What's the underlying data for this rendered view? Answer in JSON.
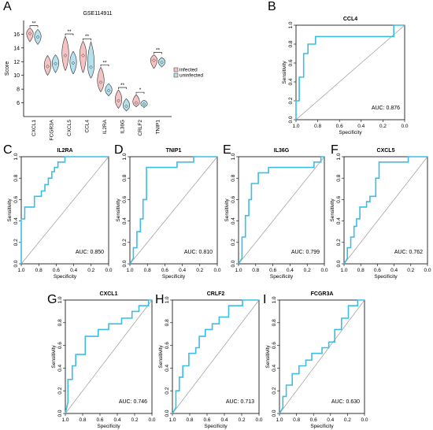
{
  "panel_letters": [
    "A",
    "B",
    "C",
    "D",
    "E",
    "F",
    "G",
    "H",
    "I"
  ],
  "chart_data": [
    {
      "panel": "A",
      "type": "violin",
      "title": "GSE114911",
      "ylabel": "Score",
      "ylim": [
        4,
        18
      ],
      "yticks": [
        6,
        8,
        10,
        12,
        14,
        16
      ],
      "categories": [
        "CXCL1",
        "FCGR3A",
        "CXCL5",
        "CCL4",
        "IL2RA",
        "IL36G",
        "CRLF2",
        "TNIP1"
      ],
      "significance": [
        "**",
        "",
        "**",
        "**",
        "**",
        "**",
        "*",
        "**"
      ],
      "legend": [
        "infected",
        "uninfected"
      ],
      "legend_position": "right",
      "colors": {
        "infected": "#f4c4c4",
        "uninfected": "#b5e0ec"
      },
      "series": [
        {
          "name": "infected",
          "median": [
            16.1,
            11.3,
            12.9,
            12.9,
            9.0,
            6.3,
            6.0,
            12.2
          ],
          "min": [
            14.9,
            10.0,
            10.7,
            10.4,
            7.6,
            5.2,
            5.4,
            11.0
          ],
          "max": [
            16.9,
            12.9,
            15.7,
            15.0,
            11.2,
            7.9,
            7.2,
            13.0
          ]
        },
        {
          "name": "uninfected",
          "median": [
            15.6,
            11.7,
            11.8,
            11.2,
            7.8,
            5.5,
            5.8,
            11.9
          ],
          "min": [
            14.5,
            10.4,
            10.2,
            9.6,
            7.0,
            4.8,
            5.3,
            11.2
          ],
          "max": [
            16.7,
            13.0,
            13.5,
            14.9,
            8.8,
            6.6,
            6.4,
            12.6
          ]
        }
      ]
    },
    {
      "panel": "B",
      "type": "roc",
      "title": "CCL4",
      "auc_label": "AUC: 0.876",
      "xlabel": "Specificity",
      "ylabel": "Sensitivity",
      "xticks": [
        "1.0",
        "0.8",
        "0.6",
        "0.4",
        "0.2",
        "0.0"
      ],
      "yticks": [
        "0.0",
        "0.2",
        "0.4",
        "0.6",
        "0.8",
        "1.0"
      ],
      "specificity": [
        1.0,
        1.0,
        0.97,
        0.97,
        0.93,
        0.93,
        0.89,
        0.89,
        0.82,
        0.82,
        0.1,
        0.1,
        0.0
      ],
      "sensitivity": [
        0.0,
        0.2,
        0.2,
        0.45,
        0.45,
        0.7,
        0.7,
        0.8,
        0.8,
        0.88,
        0.88,
        1.0,
        1.0
      ]
    },
    {
      "panel": "C",
      "type": "roc",
      "title": "IL2RA",
      "auc_label": "AUC: 0.850",
      "xlabel": "Specificity",
      "ylabel": "Sensitivity",
      "xticks": [
        "1.0",
        "0.8",
        "0.6",
        "0.4",
        "0.2",
        "0.0"
      ],
      "yticks": [
        "0.0",
        "0.2",
        "0.4",
        "0.6",
        "0.8",
        "1.0"
      ],
      "specificity": [
        1.0,
        1.0,
        0.96,
        0.96,
        0.85,
        0.85,
        0.77,
        0.77,
        0.73,
        0.73,
        0.69,
        0.69,
        0.65,
        0.65,
        0.62,
        0.62,
        0.58,
        0.58,
        0.5,
        0.5,
        0.0
      ],
      "sensitivity": [
        0.0,
        0.42,
        0.42,
        0.53,
        0.53,
        0.63,
        0.63,
        0.68,
        0.68,
        0.74,
        0.74,
        0.8,
        0.8,
        0.86,
        0.86,
        0.9,
        0.9,
        0.95,
        0.95,
        1.0,
        1.0
      ]
    },
    {
      "panel": "D",
      "type": "roc",
      "title": "TNIP1",
      "auc_label": "AUC: 0.810",
      "xlabel": "Specificity",
      "ylabel": "Sensitivity",
      "xticks": [
        "1.0",
        "0.8",
        "0.6",
        "0.4",
        "0.2",
        "0.0"
      ],
      "yticks": [
        "0.0",
        "0.2",
        "0.4",
        "0.6",
        "0.8",
        "1.0"
      ],
      "specificity": [
        1.0,
        0.96,
        0.96,
        0.92,
        0.92,
        0.88,
        0.88,
        0.85,
        0.85,
        0.81,
        0.81,
        0.46,
        0.46,
        0.27,
        0.27,
        0.0
      ],
      "sensitivity": [
        0.0,
        0.05,
        0.15,
        0.15,
        0.3,
        0.3,
        0.42,
        0.42,
        0.6,
        0.6,
        0.9,
        0.9,
        0.95,
        0.95,
        1.0,
        1.0
      ]
    },
    {
      "panel": "E",
      "type": "roc",
      "title": "IL36G",
      "auc_label": "AUC: 0.799",
      "xlabel": "Specificity",
      "ylabel": "Sensitivity",
      "xticks": [
        "1.0",
        "0.8",
        "0.6",
        "0.4",
        "0.2",
        "0.0"
      ],
      "yticks": [
        "0.0",
        "0.2",
        "0.4",
        "0.6",
        "0.8",
        "1.0"
      ],
      "specificity": [
        1.0,
        0.96,
        0.96,
        0.92,
        0.92,
        0.88,
        0.88,
        0.85,
        0.85,
        0.77,
        0.77,
        0.65,
        0.65,
        0.12,
        0.12,
        0.04,
        0.04,
        0.0
      ],
      "sensitivity": [
        0.0,
        0.05,
        0.25,
        0.25,
        0.45,
        0.45,
        0.6,
        0.6,
        0.75,
        0.75,
        0.85,
        0.85,
        0.9,
        0.9,
        0.95,
        0.95,
        1.0,
        1.0
      ]
    },
    {
      "panel": "F",
      "type": "roc",
      "title": "CXCL5",
      "auc_label": "AUC: 0.762",
      "xlabel": "Specificity",
      "ylabel": "Sensitivity",
      "xticks": [
        "1.0",
        "0.8",
        "0.6",
        "0.4",
        "0.2",
        "0.0"
      ],
      "yticks": [
        "0.0",
        "0.2",
        "0.4",
        "0.6",
        "0.8",
        "1.0"
      ],
      "specificity": [
        1.0,
        0.96,
        0.96,
        0.92,
        0.92,
        0.88,
        0.88,
        0.85,
        0.85,
        0.81,
        0.81,
        0.73,
        0.73,
        0.69,
        0.69,
        0.62,
        0.62,
        0.58,
        0.58,
        0.23,
        0.23,
        0.0
      ],
      "sensitivity": [
        0.0,
        0.05,
        0.15,
        0.15,
        0.25,
        0.25,
        0.35,
        0.35,
        0.42,
        0.42,
        0.53,
        0.53,
        0.58,
        0.58,
        0.63,
        0.63,
        0.8,
        0.8,
        0.95,
        0.95,
        1.0,
        1.0
      ]
    },
    {
      "panel": "G",
      "type": "roc",
      "title": "CXCL1",
      "auc_label": "AUC: 0.746",
      "xlabel": "Specificity",
      "ylabel": "Sensitivity",
      "xticks": [
        "1.0",
        "0.8",
        "0.6",
        "0.4",
        "0.2",
        "0.0"
      ],
      "yticks": [
        "0.0",
        "0.2",
        "0.4",
        "0.6",
        "0.8",
        "1.0"
      ],
      "specificity": [
        1.0,
        0.97,
        0.97,
        0.92,
        0.92,
        0.88,
        0.88,
        0.77,
        0.77,
        0.62,
        0.62,
        0.5,
        0.5,
        0.35,
        0.35,
        0.23,
        0.23,
        0.15,
        0.15,
        0.04,
        0.04,
        0.0
      ],
      "sensitivity": [
        0.0,
        0.1,
        0.3,
        0.3,
        0.42,
        0.42,
        0.52,
        0.52,
        0.68,
        0.68,
        0.74,
        0.74,
        0.79,
        0.79,
        0.84,
        0.84,
        0.9,
        0.9,
        0.95,
        0.95,
        1.0,
        1.0
      ]
    },
    {
      "panel": "H",
      "type": "roc",
      "title": "CRLF2",
      "auc_label": "AUC: 0.713",
      "xlabel": "Specificity",
      "ylabel": "Sensitivity",
      "xticks": [
        "1.0",
        "0.8",
        "0.6",
        "0.4",
        "0.2",
        "0.0"
      ],
      "yticks": [
        "0.0",
        "0.2",
        "0.4",
        "0.6",
        "0.8",
        "1.0"
      ],
      "specificity": [
        1.0,
        0.96,
        0.96,
        0.92,
        0.92,
        0.88,
        0.88,
        0.81,
        0.81,
        0.73,
        0.73,
        0.69,
        0.69,
        0.62,
        0.62,
        0.54,
        0.54,
        0.46,
        0.46,
        0.35,
        0.35,
        0.19,
        0.19,
        0.0
      ],
      "sensitivity": [
        0.0,
        0.05,
        0.2,
        0.2,
        0.32,
        0.32,
        0.42,
        0.42,
        0.53,
        0.53,
        0.58,
        0.58,
        0.68,
        0.68,
        0.74,
        0.74,
        0.79,
        0.79,
        0.85,
        0.85,
        0.95,
        0.95,
        1.0,
        1.0
      ]
    },
    {
      "panel": "I",
      "type": "roc",
      "title": "FCGR3A",
      "auc_label": "AUC: 0.630",
      "xlabel": "Specificity",
      "ylabel": "Sensitivity",
      "xticks": [
        "1.0",
        "0.8",
        "0.6",
        "0.4",
        "0.2",
        "0.0"
      ],
      "yticks": [
        "0.0",
        "0.2",
        "0.4",
        "0.6",
        "0.8",
        "1.0"
      ],
      "specificity": [
        1.0,
        0.96,
        0.96,
        0.92,
        0.92,
        0.85,
        0.85,
        0.77,
        0.77,
        0.69,
        0.69,
        0.62,
        0.62,
        0.5,
        0.5,
        0.42,
        0.42,
        0.35,
        0.35,
        0.27,
        0.27,
        0.19,
        0.19,
        0.08,
        0.08,
        0.0
      ],
      "sensitivity": [
        0.0,
        0.05,
        0.15,
        0.15,
        0.25,
        0.25,
        0.35,
        0.35,
        0.42,
        0.42,
        0.47,
        0.47,
        0.53,
        0.53,
        0.58,
        0.58,
        0.63,
        0.63,
        0.74,
        0.74,
        0.84,
        0.84,
        0.95,
        0.95,
        1.0,
        1.0
      ]
    }
  ],
  "colors": {
    "roc_line": "#3dbde6",
    "diagonal": "#9a9a9a",
    "axis": "#000000"
  }
}
